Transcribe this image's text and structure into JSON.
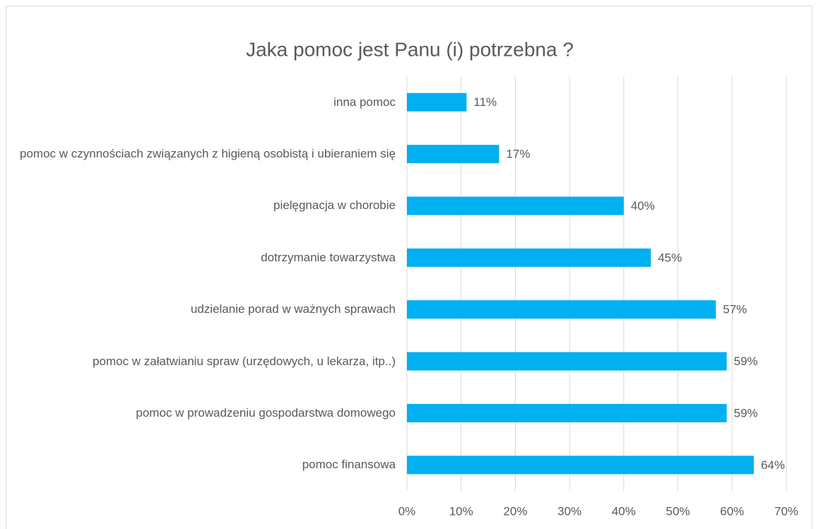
{
  "chart_data": {
    "type": "bar",
    "orientation": "horizontal",
    "title": "Jaka pomoc jest Panu (i) potrzebna ?",
    "categories": [
      "inna pomoc",
      "pomoc w czynnościach związanych z higieną osobistą i ubieraniem się",
      "pielęgnacja w chorobie",
      "dotrzymanie towarzystwa",
      "udzielanie porad w ważnych sprawach",
      "pomoc w załatwianiu spraw (urzędowych, u lekarza, itp..)",
      "pomoc w prowadzeniu gospodarstwa domowego",
      "pomoc finansowa"
    ],
    "values": [
      11,
      17,
      40,
      45,
      57,
      59,
      59,
      64
    ],
    "value_labels": [
      "11%",
      "17%",
      "40%",
      "45%",
      "57%",
      "59%",
      "59%",
      "64%"
    ],
    "color": "#00b0f0",
    "xlim": [
      0,
      70
    ],
    "xticks": [
      {
        "value": 0,
        "label": "0%"
      },
      {
        "value": 10,
        "label": "10%"
      },
      {
        "value": 20,
        "label": "20%"
      },
      {
        "value": 30,
        "label": "30%"
      },
      {
        "value": 40,
        "label": "40%"
      },
      {
        "value": 50,
        "label": "50%"
      },
      {
        "value": 60,
        "label": "60%"
      },
      {
        "value": 70,
        "label": "70%"
      }
    ],
    "grid": true
  }
}
